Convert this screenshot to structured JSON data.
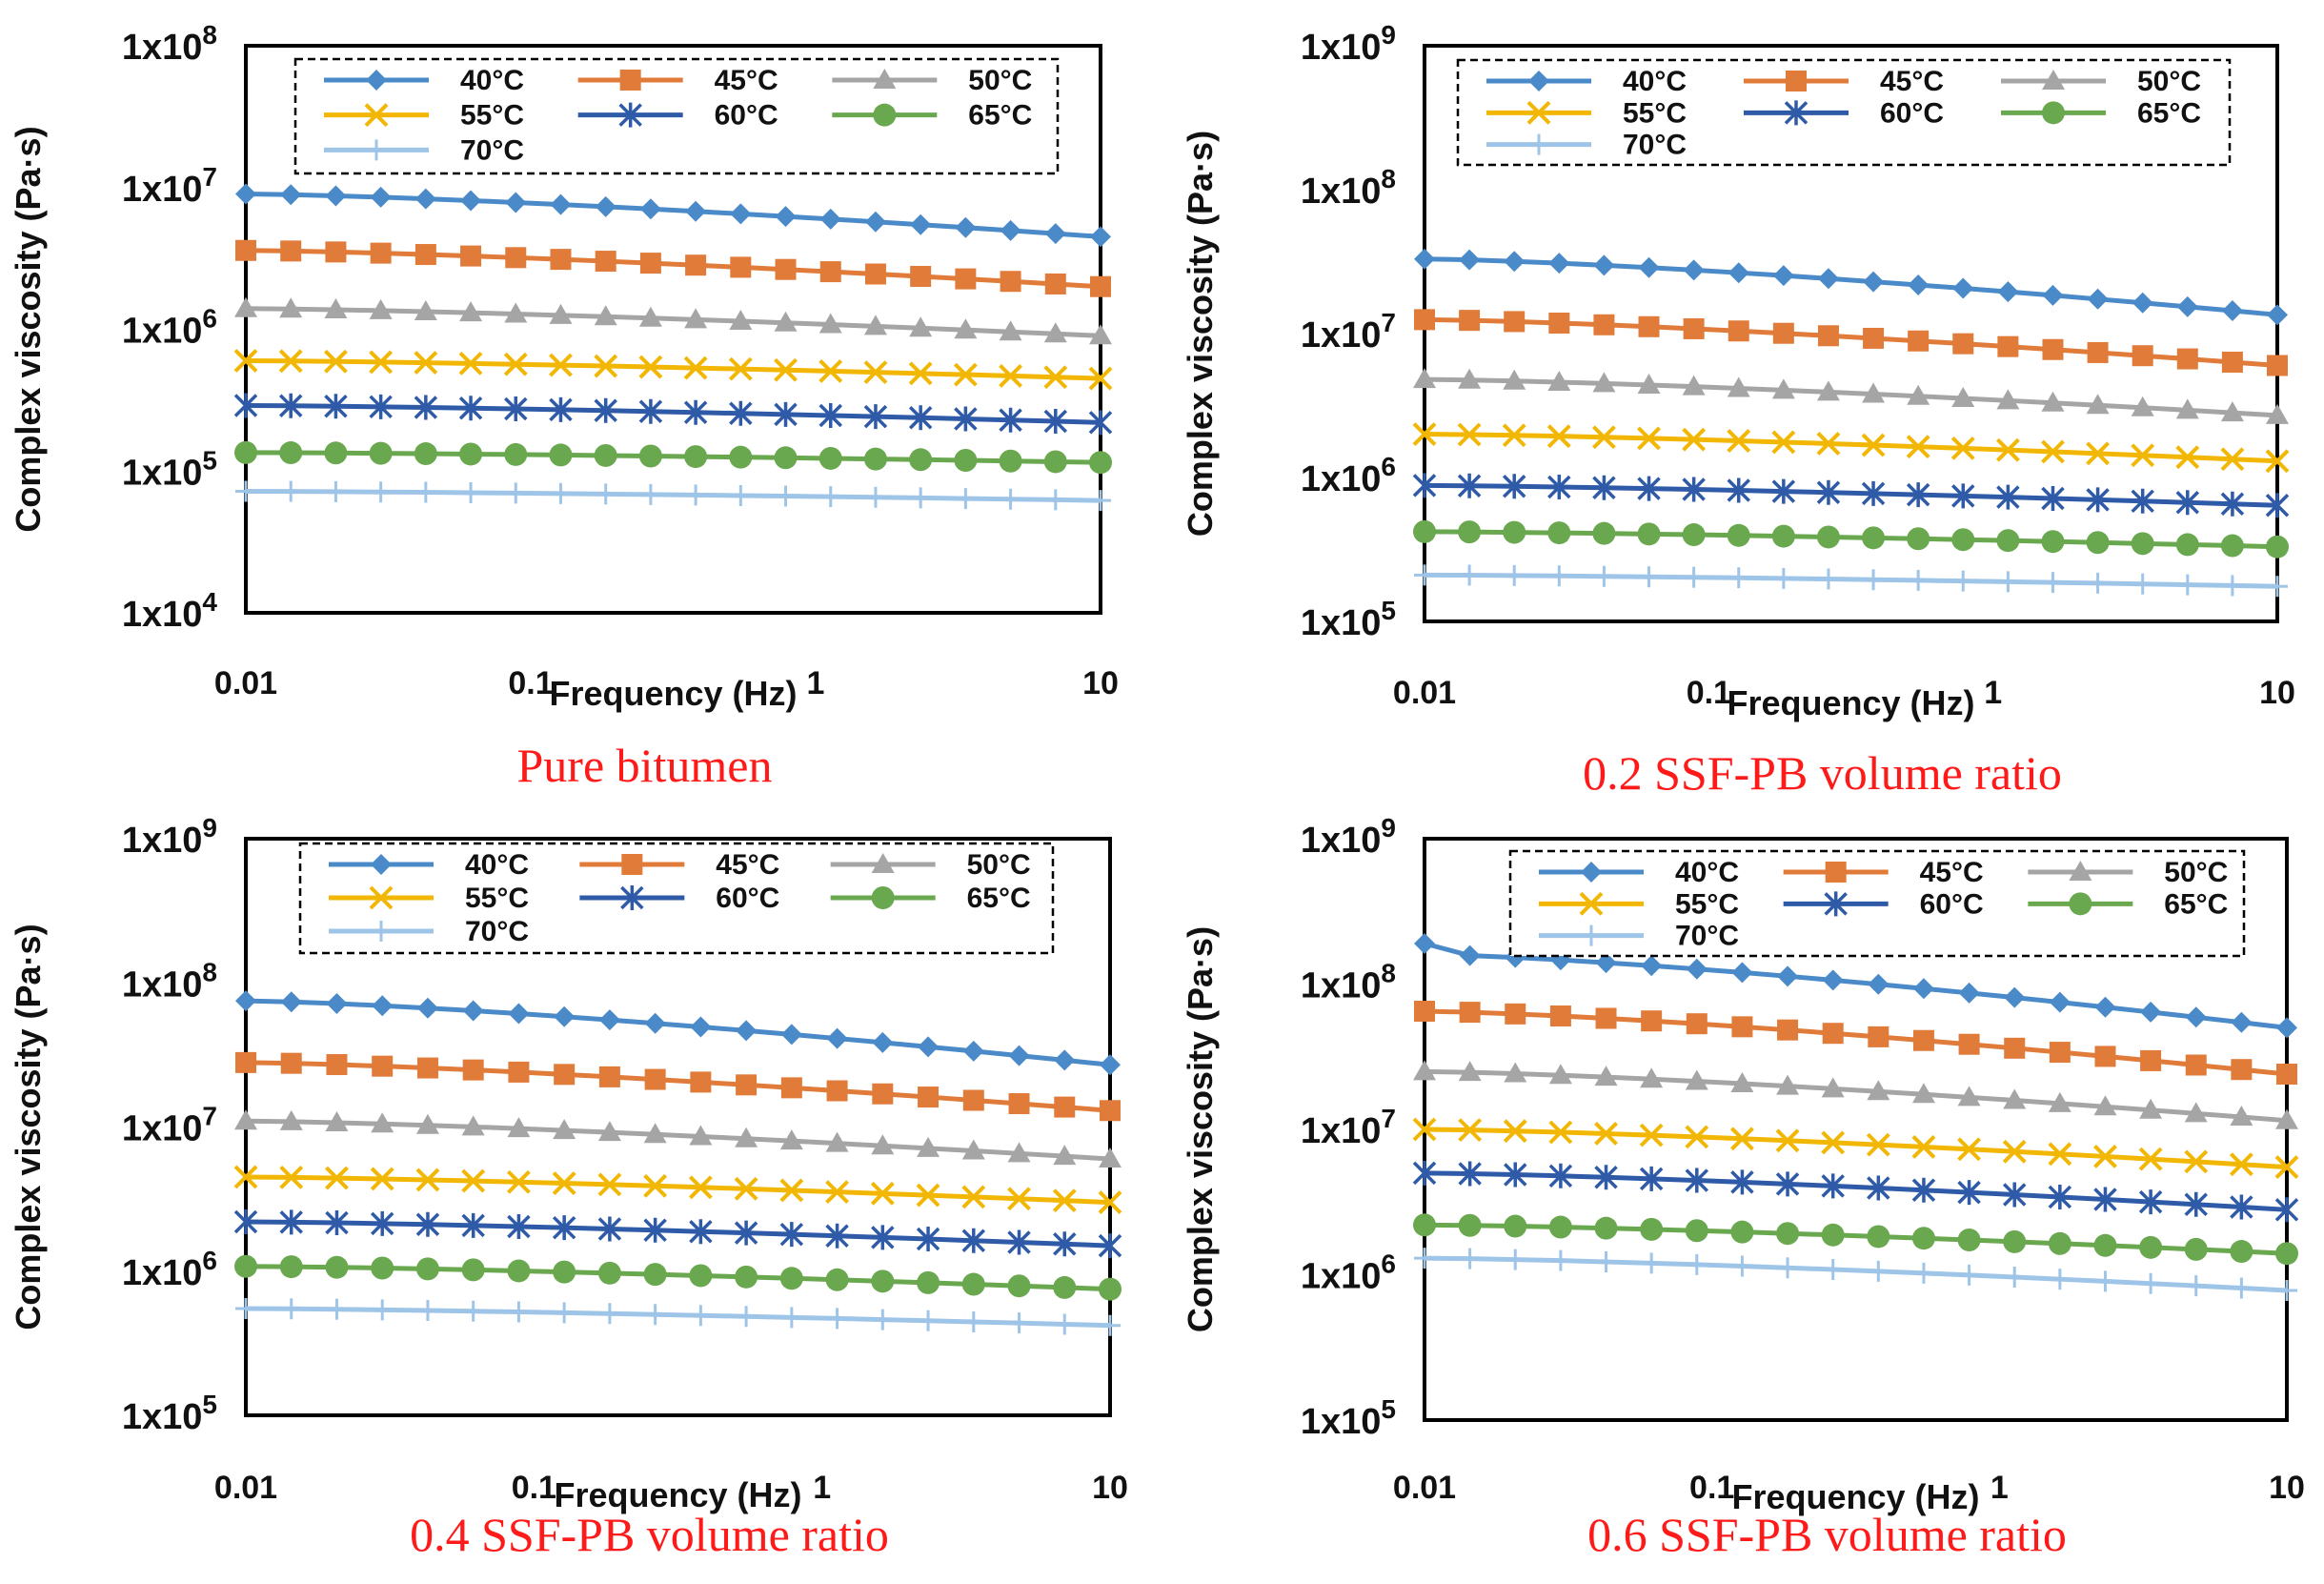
{
  "chart_data": [
    {
      "type": "line",
      "title": "Pure bitumen",
      "xlabel": "Frequency (Hz)",
      "ylabel": "Complex viscosity (Pa·s)",
      "xscale": "log",
      "yscale": "log",
      "xlim": [
        0.01,
        10
      ],
      "ylim": [
        10000,
        100000000
      ],
      "xticks": [
        0.01,
        0.1,
        1,
        10
      ],
      "xtick_labels": [
        "0.01",
        "0.1",
        "1",
        "10"
      ],
      "yticks": [
        10000,
        100000,
        1000000,
        10000000,
        100000000
      ],
      "ytick_labels": [
        {
          "base": "1x10",
          "exp": "4"
        },
        {
          "base": "1x10",
          "exp": "5"
        },
        {
          "base": "1x10",
          "exp": "6"
        },
        {
          "base": "1x10",
          "exp": "7"
        },
        {
          "base": "1x10",
          "exp": "8"
        }
      ],
      "legend_position": "top",
      "series": [
        {
          "name": "40°C",
          "color": "#4a8ac9",
          "marker": "diamond",
          "start": 9000000,
          "end": 4500000
        },
        {
          "name": "45°C",
          "color": "#e07b39",
          "marker": "square",
          "start": 3600000,
          "end": 2000000
        },
        {
          "name": "50°C",
          "color": "#a5a5a5",
          "marker": "triangle",
          "start": 1400000,
          "end": 900000
        },
        {
          "name": "55°C",
          "color": "#f2b705",
          "marker": "x",
          "start": 600000,
          "end": 450000
        },
        {
          "name": "60°C",
          "color": "#2f5aa8",
          "marker": "star",
          "start": 290000,
          "end": 220000
        },
        {
          "name": "65°C",
          "color": "#6aa84f",
          "marker": "circle",
          "start": 135000,
          "end": 115000
        },
        {
          "name": "70°C",
          "color": "#9ec5e8",
          "marker": "plus",
          "start": 72000,
          "end": 62000
        }
      ]
    },
    {
      "type": "line",
      "title": "0.2 SSF-PB volume ratio",
      "xlabel": "Frequency (Hz)",
      "ylabel": "Complex viscosity (Pa·s)",
      "xscale": "log",
      "yscale": "log",
      "xlim": [
        0.01,
        10
      ],
      "ylim": [
        100000,
        1000000000
      ],
      "xticks": [
        0.01,
        0.1,
        1,
        10
      ],
      "xtick_labels": [
        "0.01",
        "0.1",
        "1",
        "10"
      ],
      "yticks": [
        100000,
        1000000,
        10000000,
        100000000,
        1000000000
      ],
      "ytick_labels": [
        {
          "base": "1x10",
          "exp": "5"
        },
        {
          "base": "1x10",
          "exp": "6"
        },
        {
          "base": "1x10",
          "exp": "7"
        },
        {
          "base": "1x10",
          "exp": "8"
        },
        {
          "base": "1x10",
          "exp": "9"
        }
      ],
      "legend_position": "top",
      "series": [
        {
          "name": "40°C",
          "color": "#4a8ac9",
          "marker": "diamond",
          "start": 33000000,
          "end": 13500000
        },
        {
          "name": "45°C",
          "color": "#e07b39",
          "marker": "square",
          "start": 12500000,
          "end": 6000000
        },
        {
          "name": "50°C",
          "color": "#a5a5a5",
          "marker": "triangle",
          "start": 4800000,
          "end": 2700000
        },
        {
          "name": "55°C",
          "color": "#f2b705",
          "marker": "x",
          "start": 2000000,
          "end": 1300000
        },
        {
          "name": "60°C",
          "color": "#2f5aa8",
          "marker": "star",
          "start": 880000,
          "end": 640000
        },
        {
          "name": "65°C",
          "color": "#6aa84f",
          "marker": "circle",
          "start": 420000,
          "end": 330000
        },
        {
          "name": "70°C",
          "color": "#9ec5e8",
          "marker": "plus",
          "start": 210000,
          "end": 175000
        }
      ]
    },
    {
      "type": "line",
      "title": "0.4 SSF-PB volume ratio",
      "xlabel": "Frequency (Hz)",
      "ylabel": "Complex viscosity (Pa·s)",
      "xscale": "log",
      "yscale": "log",
      "xlim": [
        0.01,
        10
      ],
      "ylim": [
        100000,
        1000000000
      ],
      "xticks": [
        0.01,
        0.1,
        1,
        10
      ],
      "xtick_labels": [
        "0.01",
        "0.1",
        "1",
        "10"
      ],
      "yticks": [
        100000,
        1000000,
        10000000,
        100000000,
        1000000000
      ],
      "ytick_labels": [
        {
          "base": "1x10",
          "exp": "5"
        },
        {
          "base": "1x10",
          "exp": "6"
        },
        {
          "base": "1x10",
          "exp": "7"
        },
        {
          "base": "1x10",
          "exp": "8"
        },
        {
          "base": "1x10",
          "exp": "9"
        }
      ],
      "legend_position": "top",
      "series": [
        {
          "name": "40°C",
          "color": "#4a8ac9",
          "marker": "diamond",
          "start": 75000000,
          "end": 27000000
        },
        {
          "name": "45°C",
          "color": "#e07b39",
          "marker": "square",
          "start": 28000000,
          "end": 13000000
        },
        {
          "name": "50°C",
          "color": "#a5a5a5",
          "marker": "triangle",
          "start": 11000000,
          "end": 6000000
        },
        {
          "name": "55°C",
          "color": "#f2b705",
          "marker": "x",
          "start": 4500000,
          "end": 3000000
        },
        {
          "name": "60°C",
          "color": "#2f5aa8",
          "marker": "star",
          "start": 2200000,
          "end": 1500000
        },
        {
          "name": "65°C",
          "color": "#6aa84f",
          "marker": "circle",
          "start": 1080000,
          "end": 750000
        },
        {
          "name": "70°C",
          "color": "#9ec5e8",
          "marker": "plus",
          "start": 550000,
          "end": 420000
        }
      ]
    },
    {
      "type": "line",
      "title": "0.6 SSF-PB volume ratio",
      "xlabel": "Frequency (Hz)",
      "ylabel": "Complex viscosity (Pa·s)",
      "xscale": "log",
      "yscale": "log",
      "xlim": [
        0.01,
        10
      ],
      "ylim": [
        100000,
        1000000000
      ],
      "xticks": [
        0.01,
        0.1,
        1,
        10
      ],
      "xtick_labels": [
        "0.01",
        "0.1",
        "1",
        "10"
      ],
      "yticks": [
        100000,
        1000000,
        10000000,
        100000000,
        1000000000
      ],
      "ytick_labels": [
        {
          "base": "1x10",
          "exp": "5"
        },
        {
          "base": "1x10",
          "exp": "6"
        },
        {
          "base": "1x10",
          "exp": "7"
        },
        {
          "base": "1x10",
          "exp": "8"
        },
        {
          "base": "1x10",
          "exp": "9"
        }
      ],
      "legend_position": "top",
      "series": [
        {
          "name": "40°C",
          "color": "#4a8ac9",
          "marker": "diamond",
          "start": 190000000,
          "end": 50000000,
          "first_drop": 160000000
        },
        {
          "name": "45°C",
          "color": "#e07b39",
          "marker": "square",
          "start": 65000000,
          "end": 24000000
        },
        {
          "name": "50°C",
          "color": "#a5a5a5",
          "marker": "triangle",
          "start": 25000000,
          "end": 11500000
        },
        {
          "name": "55°C",
          "color": "#f2b705",
          "marker": "x",
          "start": 10000000,
          "end": 5500000
        },
        {
          "name": "60°C",
          "color": "#2f5aa8",
          "marker": "star",
          "start": 5000000,
          "end": 2800000
        },
        {
          "name": "65°C",
          "color": "#6aa84f",
          "marker": "circle",
          "start": 2200000,
          "end": 1400000
        },
        {
          "name": "70°C",
          "color": "#9ec5e8",
          "marker": "plus",
          "start": 1300000,
          "end": 780000
        }
      ]
    }
  ]
}
